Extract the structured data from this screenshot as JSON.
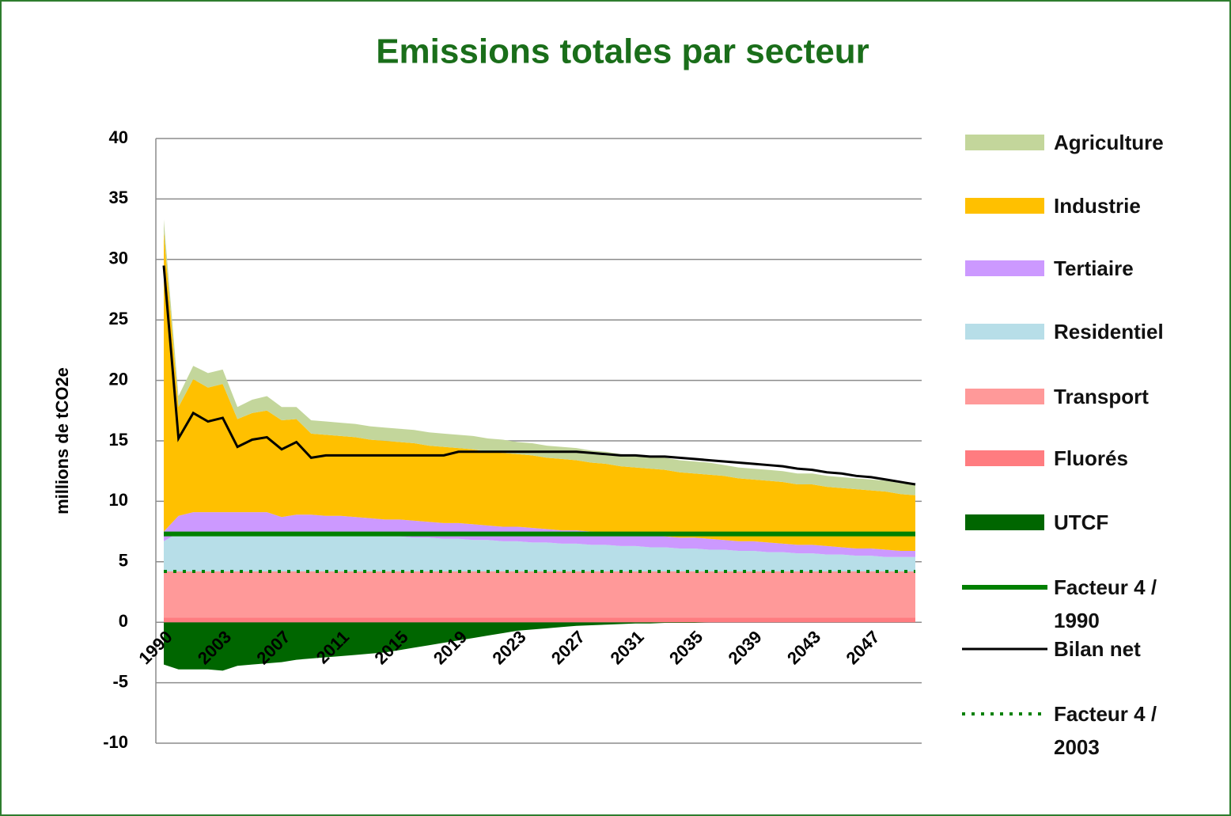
{
  "chart_data": {
    "type": "stacked_area",
    "title": "Emissions totales par secteur",
    "y_label": "millions de tCO2e",
    "categories": [
      "1990",
      null,
      null,
      null,
      "2003",
      null,
      null,
      null,
      "2007",
      null,
      null,
      null,
      "2011",
      null,
      null,
      null,
      "2015",
      null,
      null,
      null,
      "2019",
      null,
      null,
      null,
      "2023",
      null,
      null,
      null,
      "2027",
      null,
      null,
      null,
      "2031",
      null,
      null,
      null,
      "2035",
      null,
      null,
      null,
      "2039",
      null,
      null,
      null,
      "2043",
      null,
      null,
      null,
      "2047",
      null,
      null,
      null
    ],
    "ylim": [
      -10,
      40
    ],
    "yticks": [
      -10,
      -5,
      0,
      5,
      10,
      15,
      20,
      25,
      30,
      35,
      40
    ],
    "grid": true,
    "legend": "right",
    "series": [
      {
        "name": "Agriculture",
        "kind": "area",
        "color": "#c3d69b",
        "values": [
          1.0,
          0.9,
          1.1,
          1.2,
          1.2,
          1.0,
          1.1,
          1.2,
          1.1,
          1.0,
          1.1,
          1.1,
          1.1,
          1.1,
          1.1,
          1.1,
          1.1,
          1.1,
          1.1,
          1.1,
          1.1,
          1.1,
          1.1,
          1.1,
          1.0,
          1.0,
          1.0,
          1.0,
          1.0,
          1.0,
          1.0,
          1.0,
          1.0,
          1.0,
          1.0,
          1.0,
          1.0,
          1.0,
          0.9,
          0.9,
          0.9,
          0.9,
          0.9,
          0.9,
          0.9,
          0.9,
          0.9,
          0.9,
          0.9,
          0.9,
          0.9,
          0.9
        ]
      },
      {
        "name": "Industrie",
        "kind": "area",
        "color": "#ffc000",
        "values": [
          24.8,
          9.0,
          11.0,
          10.3,
          10.6,
          7.7,
          8.2,
          8.4,
          8.0,
          7.9,
          6.7,
          6.7,
          6.6,
          6.6,
          6.5,
          6.5,
          6.4,
          6.4,
          6.3,
          6.3,
          6.2,
          6.2,
          6.1,
          6.1,
          6.0,
          6.0,
          5.9,
          5.9,
          5.8,
          5.7,
          5.7,
          5.6,
          5.5,
          5.5,
          5.5,
          5.4,
          5.3,
          5.3,
          5.3,
          5.2,
          5.1,
          5.1,
          5.1,
          5.0,
          5.0,
          4.9,
          4.9,
          4.9,
          4.8,
          4.8,
          4.7,
          4.6
        ]
      },
      {
        "name": "Tertiaire",
        "kind": "area",
        "color": "#cc99ff",
        "values": [
          0.8,
          1.4,
          1.7,
          1.7,
          1.7,
          1.7,
          1.7,
          1.7,
          1.3,
          1.5,
          1.5,
          1.5,
          1.5,
          1.5,
          1.4,
          1.4,
          1.4,
          1.4,
          1.3,
          1.3,
          1.3,
          1.3,
          1.2,
          1.2,
          1.2,
          1.2,
          1.1,
          1.1,
          1.1,
          1.1,
          1.0,
          1.0,
          1.0,
          1.0,
          0.9,
          0.9,
          0.9,
          0.9,
          0.8,
          0.8,
          0.8,
          0.8,
          0.7,
          0.7,
          0.7,
          0.7,
          0.6,
          0.6,
          0.6,
          0.6,
          0.5,
          0.5
        ]
      },
      {
        "name": "Residentiel",
        "kind": "area",
        "color": "#b7dee8",
        "values": [
          2.5,
          3.2,
          3.2,
          3.2,
          3.2,
          3.2,
          3.2,
          3.2,
          3.2,
          3.2,
          3.2,
          3.1,
          3.1,
          3.0,
          3.0,
          2.9,
          2.9,
          2.8,
          2.8,
          2.7,
          2.7,
          2.6,
          2.6,
          2.5,
          2.5,
          2.4,
          2.4,
          2.3,
          2.3,
          2.2,
          2.2,
          2.1,
          2.1,
          2.0,
          2.0,
          1.9,
          1.9,
          1.8,
          1.8,
          1.7,
          1.7,
          1.6,
          1.6,
          1.5,
          1.5,
          1.4,
          1.4,
          1.3,
          1.3,
          1.2,
          1.2,
          1.2
        ]
      },
      {
        "name": "Transport",
        "kind": "area",
        "color": "#ff9999",
        "values": [
          3.8,
          3.8,
          3.8,
          3.8,
          3.8,
          3.8,
          3.8,
          3.8,
          3.8,
          3.8,
          3.8,
          3.8,
          3.8,
          3.8,
          3.8,
          3.8,
          3.8,
          3.8,
          3.8,
          3.8,
          3.8,
          3.8,
          3.8,
          3.8,
          3.8,
          3.8,
          3.8,
          3.8,
          3.8,
          3.8,
          3.8,
          3.8,
          3.8,
          3.8,
          3.8,
          3.8,
          3.8,
          3.8,
          3.8,
          3.8,
          3.8,
          3.8,
          3.8,
          3.8,
          3.8,
          3.8,
          3.8,
          3.8,
          3.8,
          3.8,
          3.8,
          3.8
        ]
      },
      {
        "name": "Fluorés",
        "kind": "area",
        "color": "#ff7c80",
        "values": [
          0.4,
          0.4,
          0.4,
          0.4,
          0.4,
          0.4,
          0.4,
          0.4,
          0.4,
          0.4,
          0.4,
          0.4,
          0.4,
          0.4,
          0.4,
          0.4,
          0.4,
          0.4,
          0.4,
          0.4,
          0.4,
          0.4,
          0.4,
          0.4,
          0.4,
          0.4,
          0.4,
          0.4,
          0.4,
          0.4,
          0.4,
          0.4,
          0.4,
          0.4,
          0.4,
          0.4,
          0.4,
          0.4,
          0.4,
          0.4,
          0.4,
          0.4,
          0.4,
          0.4,
          0.4,
          0.4,
          0.4,
          0.4,
          0.4,
          0.4,
          0.4,
          0.4
        ]
      },
      {
        "name": "UTCF",
        "kind": "area",
        "color": "#006600",
        "values": [
          -3.5,
          -3.9,
          -3.9,
          -3.9,
          -4.0,
          -3.6,
          -3.5,
          -3.4,
          -3.3,
          -3.1,
          -3.0,
          -2.9,
          -2.8,
          -2.7,
          -2.6,
          -2.5,
          -2.3,
          -2.1,
          -1.9,
          -1.7,
          -1.5,
          -1.3,
          -1.1,
          -0.9,
          -0.7,
          -0.6,
          -0.5,
          -0.4,
          -0.3,
          -0.25,
          -0.2,
          -0.15,
          -0.1,
          -0.1,
          -0.05,
          -0.05,
          -0.05,
          0,
          0,
          0,
          0,
          0,
          0,
          0,
          0,
          0,
          0,
          0,
          0,
          0,
          0,
          0
        ]
      },
      {
        "name": "Facteur 4 / 1990",
        "kind": "level",
        "color": "#008000",
        "value": 7.3
      },
      {
        "name": "Bilan net",
        "kind": "line",
        "color": "#000000",
        "values": [
          29.5,
          15.2,
          17.3,
          16.6,
          16.9,
          14.5,
          15.1,
          15.3,
          14.3,
          14.9,
          13.6,
          13.8,
          13.8,
          13.8,
          13.8,
          13.8,
          13.8,
          13.8,
          13.8,
          13.8,
          14.1,
          14.1,
          14.1,
          14.1,
          14.1,
          14.1,
          14.1,
          14.1,
          14.1,
          14.0,
          13.9,
          13.8,
          13.8,
          13.7,
          13.7,
          13.6,
          13.5,
          13.4,
          13.3,
          13.2,
          13.1,
          13.0,
          12.9,
          12.7,
          12.6,
          12.4,
          12.3,
          12.1,
          12.0,
          11.8,
          11.6,
          11.4
        ]
      },
      {
        "name": "Facteur 4 / 2003",
        "kind": "level",
        "dotted": true,
        "color": "#008000",
        "value": 4.2
      }
    ]
  }
}
